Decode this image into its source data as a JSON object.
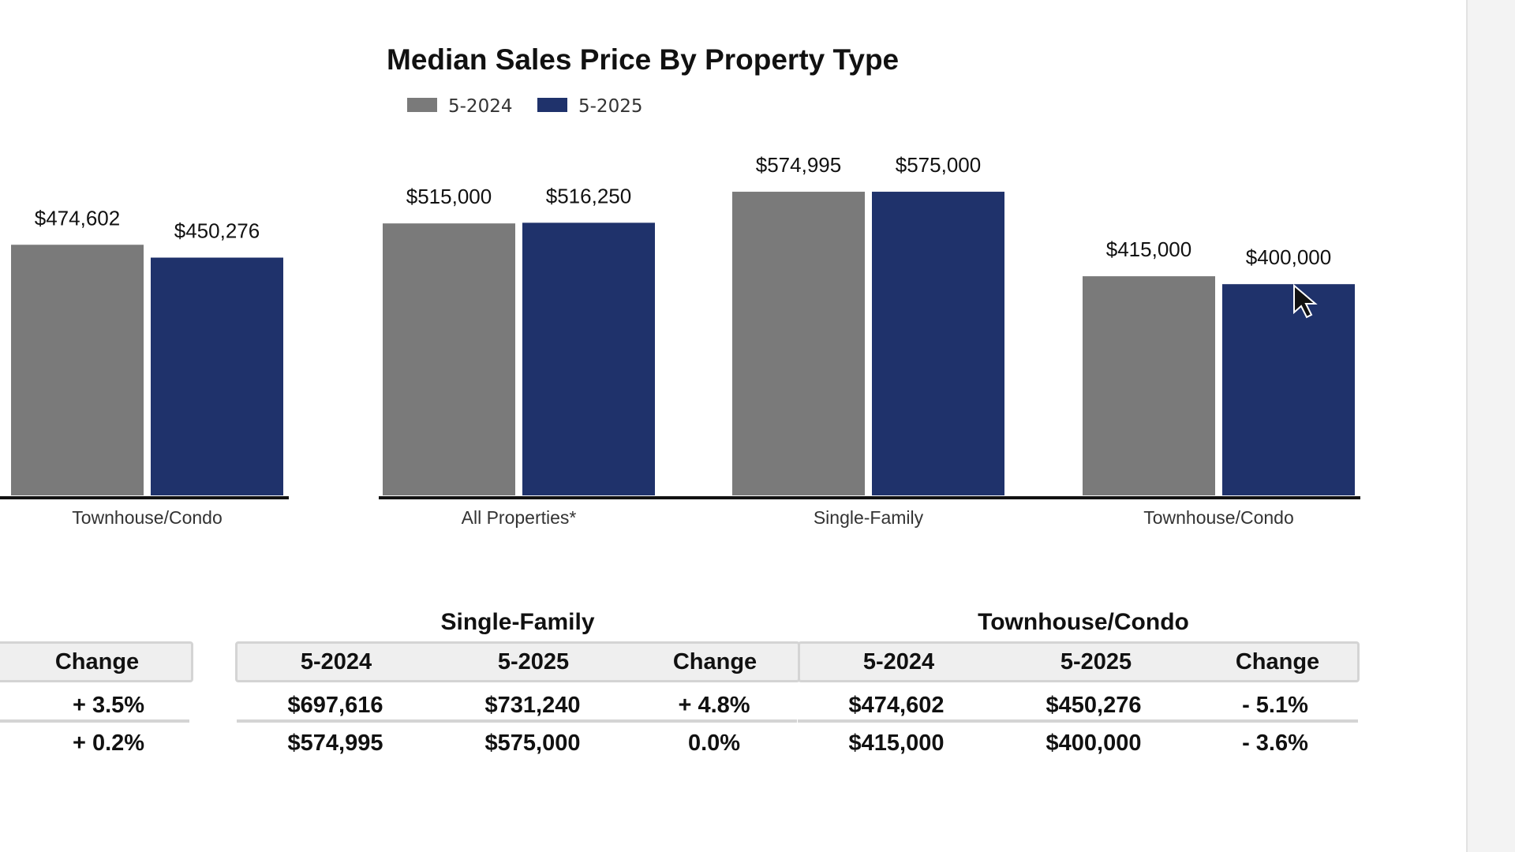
{
  "chart_data": {
    "type": "bar",
    "title": "Median Sales Price By Property Type",
    "legend": {
      "position": "top",
      "entries": [
        {
          "label": "5-2024",
          "color": "#7a7a7a"
        },
        {
          "label": "5-2025",
          "color": "#1f326b"
        }
      ]
    },
    "groups": [
      {
        "category": "Townhouse/Condo",
        "values": [
          474602,
          450276
        ],
        "labels": [
          "$474,602",
          "$450,276"
        ]
      },
      {
        "category": "All Properties*",
        "values": [
          515000,
          516250
        ],
        "labels": [
          "$515,000",
          "$516,250"
        ]
      },
      {
        "category": "Single-Family",
        "values": [
          574995,
          575000
        ],
        "labels": [
          "$574,995",
          "$575,000"
        ]
      },
      {
        "category": "Townhouse/Condo",
        "values": [
          415000,
          400000
        ],
        "labels": [
          "$415,000",
          "$400,000"
        ]
      }
    ],
    "series": [
      {
        "name": "5-2024",
        "color": "#7a7a7a"
      },
      {
        "name": "5-2025",
        "color": "#1f326b"
      }
    ],
    "xlabel": "",
    "ylabel": "",
    "ylim": [
      0,
      630000
    ],
    "grid": false
  },
  "table": {
    "left_partial": {
      "header": "Change",
      "rows": [
        "+ 3.5%",
        "+ 0.2%"
      ]
    },
    "single_family": {
      "title": "Single-Family",
      "headers": [
        "5-2024",
        "5-2025",
        "Change"
      ],
      "rows": [
        [
          "$697,616",
          "$731,240",
          "+ 4.8%"
        ],
        [
          "$574,995",
          "$575,000",
          "0.0%"
        ]
      ]
    },
    "townhouse_condo": {
      "title": "Townhouse/Condo",
      "headers": [
        "5-2024",
        "5-2025",
        "Change"
      ],
      "rows": [
        [
          "$474,602",
          "$450,276",
          "- 5.1%"
        ],
        [
          "$415,000",
          "$400,000",
          "- 3.6%"
        ]
      ]
    }
  },
  "icons": {
    "cursor": "mouse-pointer-icon"
  }
}
